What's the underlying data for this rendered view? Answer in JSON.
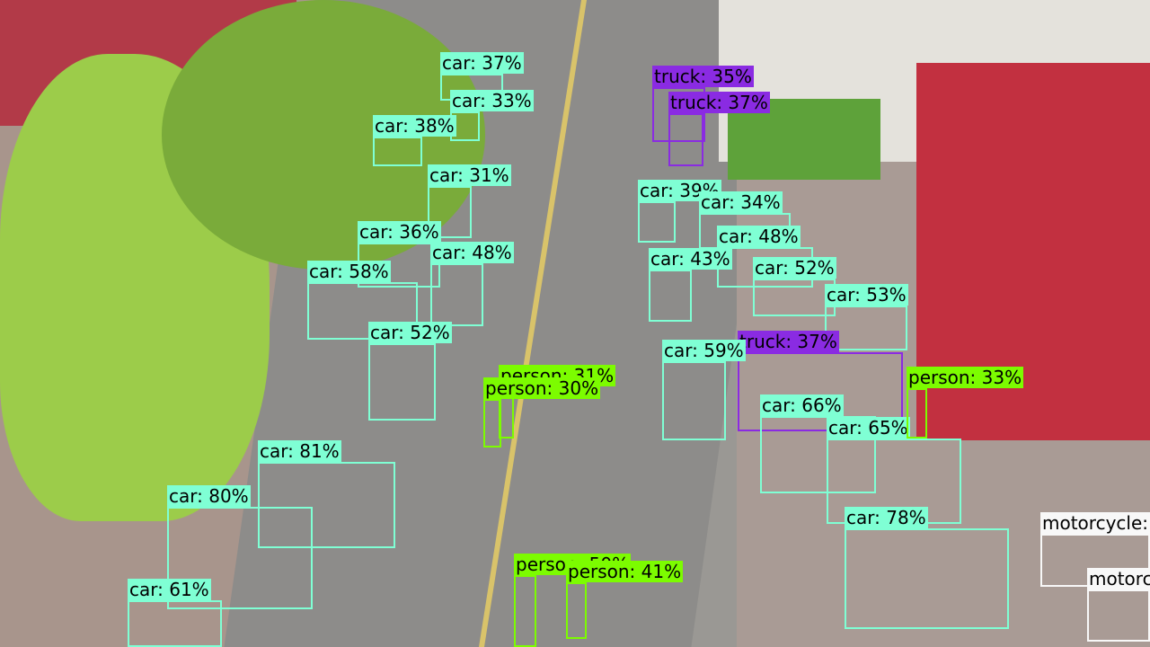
{
  "detections": [
    {
      "label": "car: 37%"
    },
    {
      "label": "car: 33%"
    },
    {
      "label": "car: 38%"
    },
    {
      "label": "car: 31%"
    },
    {
      "label": "car: 36%"
    },
    {
      "label": "car: 48%"
    },
    {
      "label": "car: 58%"
    },
    {
      "label": "car: 52%"
    },
    {
      "label": "car: 81%"
    },
    {
      "label": "car: 80%"
    },
    {
      "label": "car: 61%"
    },
    {
      "label": "truck: 35%"
    },
    {
      "label": "truck: 37%"
    },
    {
      "label": "car: 39%"
    },
    {
      "label": "car: 34%"
    },
    {
      "label": "car: 48%"
    },
    {
      "label": "car: 43%"
    },
    {
      "label": "car: 52%"
    },
    {
      "label": "car: 53%"
    },
    {
      "label": "truck: 37%"
    },
    {
      "label": "car: 59%"
    },
    {
      "label": "car: 66%"
    },
    {
      "label": "car: 65%"
    },
    {
      "label": "car: 78%"
    },
    {
      "label": "person: 31%"
    },
    {
      "label": "person: 30%"
    },
    {
      "label": "person: 33%"
    },
    {
      "label": "person: 50%"
    },
    {
      "label": "person: 41%"
    },
    {
      "label": "motorcycle:"
    },
    {
      "label": "motorcycle:"
    }
  ]
}
